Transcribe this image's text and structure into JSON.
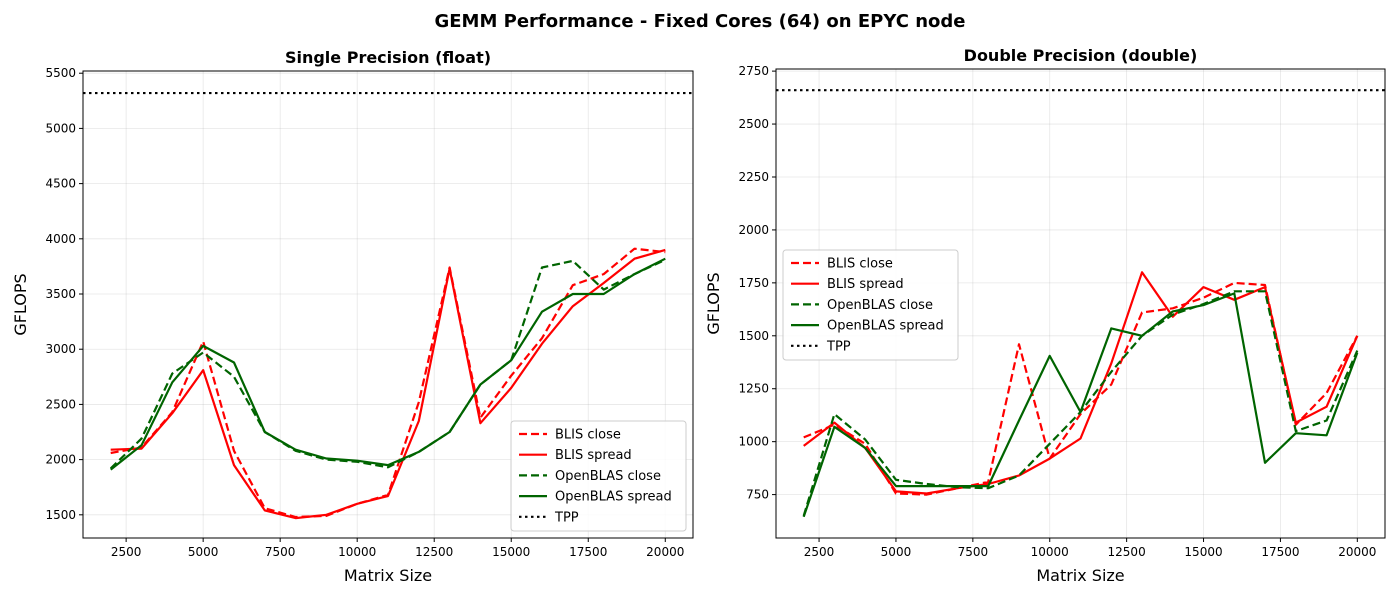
{
  "figure": {
    "title": "GEMM Performance - Fixed Cores (64) on EPYC node"
  },
  "chart_data": [
    {
      "type": "line",
      "title": "Single Precision (float)",
      "xlabel": "Matrix Size",
      "ylabel": "GFLOPS",
      "xlim": [
        1100,
        20900
      ],
      "ylim": [
        1290,
        5520
      ],
      "xticks": [
        2500,
        5000,
        7500,
        10000,
        12500,
        15000,
        17500,
        20000
      ],
      "yticks": [
        1500,
        2000,
        2500,
        3000,
        3500,
        4000,
        4500,
        5000,
        5500
      ],
      "grid": true,
      "legend_position": "lower-right",
      "x": [
        2000,
        3000,
        4000,
        5000,
        6000,
        7000,
        8000,
        9000,
        10000,
        11000,
        12000,
        13000,
        14000,
        15000,
        16000,
        17000,
        18000,
        19000,
        20000
      ],
      "series": [
        {
          "name": "BLIS close",
          "color": "#ff0000",
          "style": "dashed",
          "values": [
            2060,
            2110,
            2430,
            3070,
            2080,
            1560,
            1480,
            1490,
            1600,
            1680,
            2520,
            3740,
            2380,
            2760,
            3100,
            3580,
            3680,
            3910,
            3880
          ]
        },
        {
          "name": "BLIS spread",
          "color": "#ff0000",
          "style": "solid",
          "values": [
            2090,
            2100,
            2420,
            2810,
            1950,
            1540,
            1470,
            1500,
            1600,
            1670,
            2350,
            3730,
            2330,
            2650,
            3050,
            3390,
            3600,
            3820,
            3900
          ]
        },
        {
          "name": "OpenBLAS close",
          "color": "#006400",
          "style": "dashed",
          "values": [
            1920,
            2190,
            2780,
            2970,
            2750,
            2250,
            2080,
            2000,
            1980,
            1930,
            2070,
            2250,
            2680,
            2900,
            3740,
            3800,
            3540,
            3680,
            3810
          ]
        },
        {
          "name": "OpenBLAS spread",
          "color": "#006400",
          "style": "solid",
          "values": [
            1910,
            2130,
            2700,
            3030,
            2880,
            2250,
            2090,
            2010,
            1990,
            1950,
            2070,
            2250,
            2680,
            2900,
            3340,
            3500,
            3500,
            3680,
            3820
          ]
        }
      ],
      "reference_line": {
        "name": "TPP",
        "value": 5320,
        "color": "#000000",
        "style": "dotted"
      }
    },
    {
      "type": "line",
      "title": "Double Precision (double)",
      "xlabel": "Matrix Size",
      "ylabel": "GFLOPS",
      "xlim": [
        1100,
        20900
      ],
      "ylim": [
        545,
        2760
      ],
      "xticks": [
        2500,
        5000,
        7500,
        10000,
        12500,
        15000,
        17500,
        20000
      ],
      "yticks": [
        750,
        1000,
        1250,
        1500,
        1750,
        2000,
        2250,
        2500,
        2750
      ],
      "grid": true,
      "legend_position": "upper-left",
      "x": [
        2000,
        3000,
        4000,
        5000,
        6000,
        7000,
        8000,
        9000,
        10000,
        11000,
        12000,
        13000,
        14000,
        15000,
        16000,
        17000,
        18000,
        19000,
        20000
      ],
      "series": [
        {
          "name": "BLIS close",
          "color": "#ff0000",
          "style": "dashed",
          "values": [
            1020,
            1080,
            990,
            755,
            750,
            780,
            810,
            1460,
            920,
            1130,
            1270,
            1610,
            1630,
            1680,
            1750,
            1740,
            1080,
            1230,
            1500
          ]
        },
        {
          "name": "BLIS spread",
          "color": "#ff0000",
          "style": "solid",
          "values": [
            980,
            1090,
            970,
            765,
            755,
            780,
            800,
            840,
            920,
            1015,
            1370,
            1800,
            1590,
            1730,
            1670,
            1730,
            1090,
            1165,
            1500
          ]
        },
        {
          "name": "OpenBLAS close",
          "color": "#006400",
          "style": "dashed",
          "values": [
            650,
            1130,
            1010,
            820,
            800,
            785,
            780,
            840,
            990,
            1140,
            1330,
            1500,
            1600,
            1650,
            1710,
            1710,
            1050,
            1100,
            1430
          ]
        },
        {
          "name": "OpenBLAS spread",
          "color": "#006400",
          "style": "solid",
          "values": [
            645,
            1070,
            970,
            790,
            790,
            790,
            790,
            1100,
            1405,
            1140,
            1535,
            1500,
            1615,
            1645,
            1700,
            900,
            1040,
            1030,
            1420
          ]
        }
      ],
      "reference_line": {
        "name": "TPP",
        "value": 2660,
        "color": "#000000",
        "style": "dotted"
      }
    }
  ]
}
